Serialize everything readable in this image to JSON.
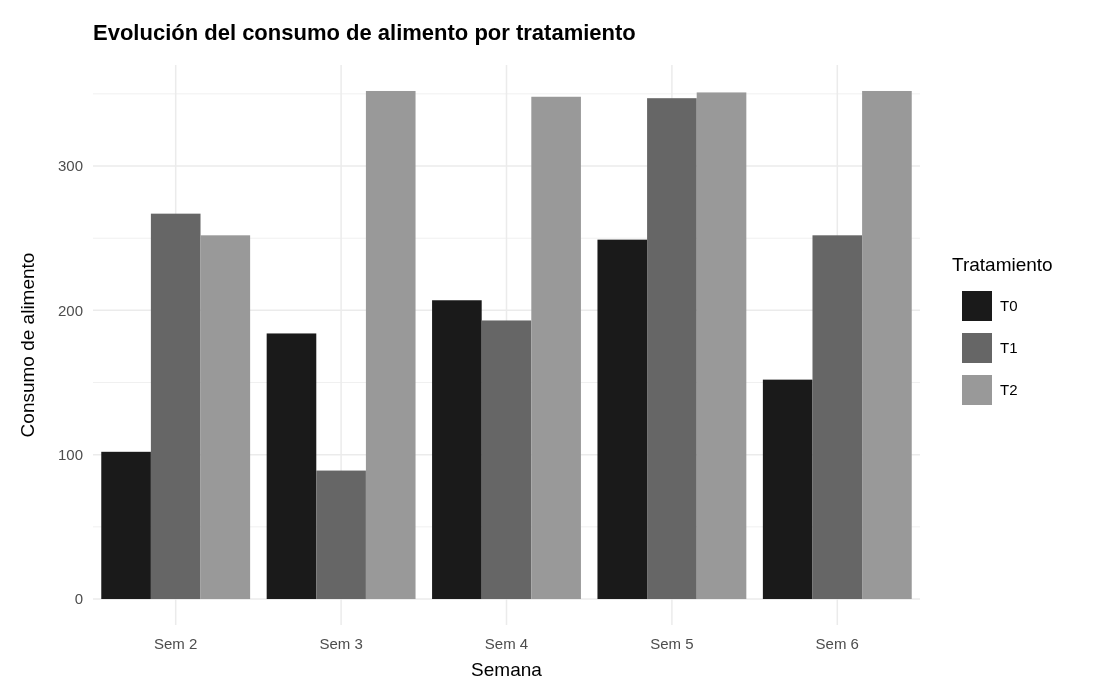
{
  "chart_data": {
    "type": "bar",
    "title": "Evolución del consumo de alimento por tratamiento",
    "xlabel": "Semana",
    "ylabel": "Consumo de alimento",
    "legend_title": "Tratamiento",
    "categories": [
      "Sem 2",
      "Sem 3",
      "Sem 4",
      "Sem 5",
      "Sem 6"
    ],
    "series": [
      {
        "name": "T0",
        "color": "#1a1a1a",
        "values": [
          102,
          184,
          207,
          249,
          152
        ]
      },
      {
        "name": "T1",
        "color": "#666666",
        "values": [
          267,
          89,
          193,
          347,
          252
        ]
      },
      {
        "name": "T2",
        "color": "#999999",
        "values": [
          252,
          352,
          348,
          351,
          352
        ]
      }
    ],
    "ylim": [
      -18,
      370
    ],
    "yticks": [
      0,
      100,
      200,
      300
    ],
    "grid": true,
    "legend": "right"
  }
}
